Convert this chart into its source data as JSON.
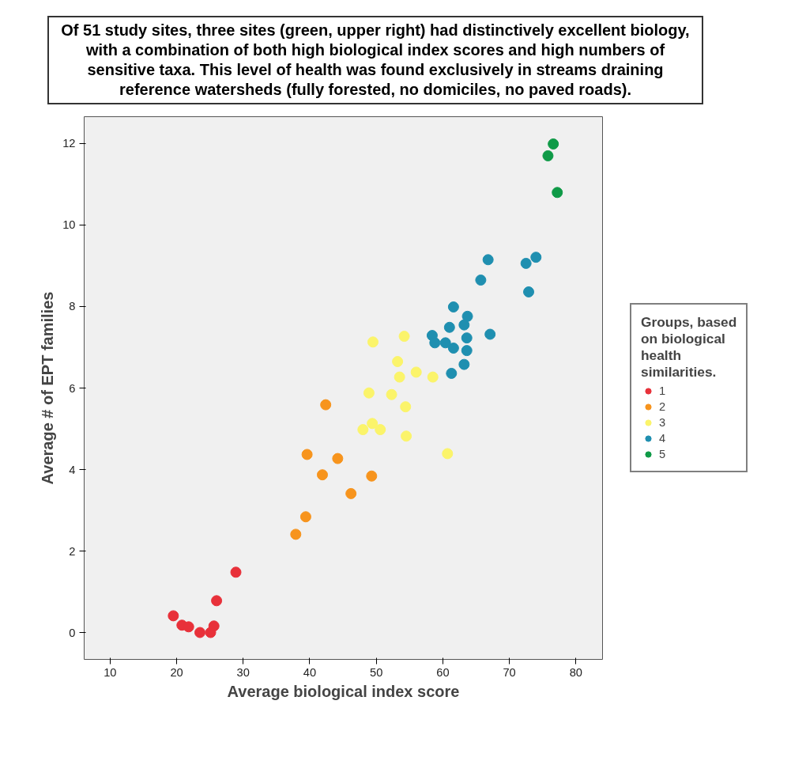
{
  "chart_data": {
    "type": "scatter",
    "title": "Of 51 study sites, three sites (green, upper right) had distinctively excellent biology, with a combination of both high biological index scores and high numbers of sensitive taxa. This level of health was found exclusively in streams draining reference watersheds (fully forested, no domiciles, no paved roads).",
    "xlabel": "Average biological index score",
    "ylabel": "Average # of EPT families",
    "legend_title": "Groups, based on biological health similarities.",
    "xlim": [
      6.1,
      84
    ],
    "ylim": [
      -0.66,
      12.66
    ],
    "xticks": [
      10,
      20,
      30,
      40,
      50,
      60,
      70,
      80
    ],
    "yticks": [
      0,
      2,
      4,
      6,
      8,
      10,
      12
    ],
    "grid": false,
    "legend": "right",
    "marker": "circle",
    "series": [
      {
        "name": "1",
        "color": "#e8313a",
        "x": [
          19.5,
          20.8,
          21.8,
          23.5,
          25.1,
          25.6,
          26.0,
          28.9
        ],
        "values": [
          0.41,
          0.18,
          0.14,
          0.0,
          0.0,
          0.16,
          0.78,
          1.48
        ]
      },
      {
        "name": "2",
        "color": "#f7941d",
        "x": [
          42.4,
          39.6,
          44.2,
          41.9,
          49.3,
          46.2,
          39.4,
          37.9
        ],
        "values": [
          5.59,
          4.37,
          4.27,
          3.87,
          3.84,
          3.41,
          2.84,
          2.41
        ]
      },
      {
        "name": "3",
        "color": "#fbf46a",
        "x": [
          48.0,
          49.4,
          50.6,
          49.5,
          54.2,
          53.2,
          53.5,
          56.0,
          58.5,
          48.9,
          52.3,
          54.4,
          54.5,
          60.7
        ],
        "values": [
          4.98,
          5.13,
          4.98,
          7.13,
          7.27,
          6.65,
          6.27,
          6.39,
          6.27,
          5.88,
          5.84,
          5.54,
          4.82,
          4.39
        ]
      },
      {
        "name": "4",
        "color": "#1f8fb0",
        "x": [
          66.8,
          72.5,
          74.0,
          65.7,
          72.9,
          61.6,
          63.7,
          63.2,
          61.0,
          58.4,
          67.1,
          63.6,
          58.8,
          60.4,
          61.6,
          63.6,
          63.2,
          61.3
        ],
        "values": [
          9.15,
          9.06,
          9.21,
          8.65,
          8.36,
          7.99,
          7.76,
          7.55,
          7.49,
          7.29,
          7.32,
          7.23,
          7.11,
          7.11,
          6.98,
          6.92,
          6.58,
          6.36
        ]
      },
      {
        "name": "5",
        "color": "#0f9a47",
        "x": [
          76.6,
          75.8,
          77.2
        ],
        "values": [
          11.99,
          11.7,
          10.8
        ]
      }
    ]
  }
}
